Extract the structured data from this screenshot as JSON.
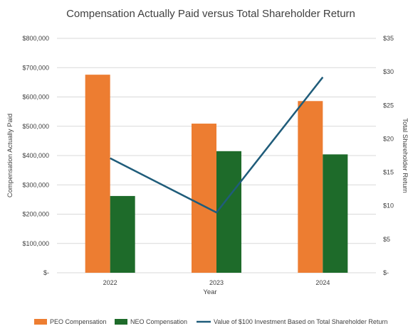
{
  "chart_data": {
    "type": "bar",
    "title": "Compensation Actually Paid versus Total Shareholder Return",
    "xlabel": "Year",
    "ylabel": "Compensation Actually Paid",
    "y2label": "Total Shareholder Return",
    "categories": [
      "2022",
      "2023",
      "2024"
    ],
    "ylim": [
      0,
      800000
    ],
    "y_ticks": [
      "$-",
      "$100,000",
      "$200,000",
      "$300,000",
      "$400,000",
      "$500,000",
      "$600,000",
      "$700,000",
      "$800,000"
    ],
    "y2lim": [
      0,
      35
    ],
    "y2_ticks": [
      "$-",
      "$5",
      "$10",
      "$15",
      "$20",
      "$25",
      "$30",
      "$35"
    ],
    "grid": true,
    "legend_position": "bottom",
    "series": [
      {
        "name": "PEO Compensation",
        "type": "bar",
        "axis": "left",
        "color": "#ED7D31",
        "values": [
          676000,
          509000,
          586000
        ]
      },
      {
        "name": "NEO Compensation",
        "type": "bar",
        "axis": "left",
        "color": "#1E6B2A",
        "values": [
          262000,
          415000,
          404000
        ]
      },
      {
        "name": "Value of $100 Investment Based on Total Shareholder Return",
        "type": "line",
        "axis": "right",
        "color": "#1F5C7A",
        "values": [
          17.1,
          9.0,
          29.2
        ]
      }
    ]
  }
}
